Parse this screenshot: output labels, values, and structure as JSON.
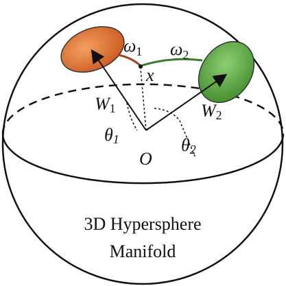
{
  "labels": {
    "omega1": {
      "base": "ω",
      "sub": "1"
    },
    "omega2": {
      "base": "ω",
      "sub": "2"
    },
    "x": "x",
    "w1": {
      "base": "W",
      "sub": "1"
    },
    "w2": {
      "base": "W",
      "sub": "2"
    },
    "theta1": {
      "base": "θ",
      "sub": "1"
    },
    "theta2": {
      "base": "θ",
      "sub": "2"
    },
    "origin": "O"
  },
  "caption": {
    "line1": "3D Hypersphere",
    "line2": "Manifold"
  }
}
